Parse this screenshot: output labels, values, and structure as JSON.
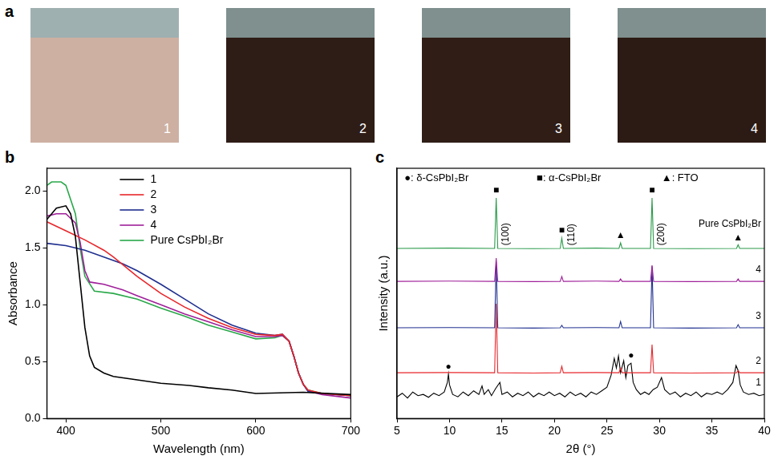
{
  "photos": {
    "letter": "a",
    "labels": [
      "1",
      "2",
      "3",
      "4"
    ],
    "colors": [
      "#cdb0a2",
      "#2e1c16",
      "#2f1d16",
      "#2c1a14"
    ]
  },
  "chart_data": [
    {
      "type": "line",
      "title": "b",
      "x_label": "Wavelength (nm)",
      "y_label": "Absorbance",
      "xlim": [
        380,
        700
      ],
      "xticks": [
        400,
        500,
        600,
        700
      ],
      "ylim": [
        0,
        2.2
      ],
      "yticks": [
        {
          "value": 0,
          "label": "0.0"
        },
        {
          "value": 0.5,
          "label": "0.5"
        },
        {
          "value": 1,
          "label": "1.0"
        },
        {
          "value": 1.5,
          "label": "1.5"
        },
        {
          "value": 2,
          "label": "2.0"
        }
      ],
      "grid": false,
      "legend": "top right",
      "series": [
        {
          "name": "1",
          "color": "#000000",
          "x": [
            380,
            390,
            400,
            405,
            410,
            415,
            420,
            425,
            430,
            440,
            450,
            475,
            500,
            530,
            550,
            575,
            600,
            650,
            700
          ],
          "values": [
            1.75,
            1.85,
            1.87,
            1.8,
            1.6,
            1.2,
            0.8,
            0.55,
            0.45,
            0.4,
            0.37,
            0.34,
            0.31,
            0.29,
            0.27,
            0.25,
            0.22,
            0.23,
            0.21
          ]
        },
        {
          "name": "2",
          "color": "#e8262b",
          "x": [
            380,
            400,
            420,
            440,
            450,
            475,
            500,
            525,
            550,
            575,
            600,
            620,
            628,
            635,
            640,
            645,
            650,
            655,
            670,
            700
          ],
          "values": [
            1.73,
            1.65,
            1.57,
            1.48,
            1.42,
            1.25,
            1.1,
            0.98,
            0.88,
            0.8,
            0.74,
            0.73,
            0.74,
            0.68,
            0.55,
            0.4,
            0.3,
            0.25,
            0.22,
            0.2
          ]
        },
        {
          "name": "3",
          "color": "#1f2f8f",
          "x": [
            380,
            400,
            420,
            440,
            460,
            475,
            500,
            525,
            550,
            575,
            600,
            620,
            628,
            635,
            640,
            645,
            650,
            655,
            670,
            700
          ],
          "values": [
            1.54,
            1.52,
            1.48,
            1.42,
            1.36,
            1.3,
            1.18,
            1.05,
            0.92,
            0.82,
            0.75,
            0.73,
            0.74,
            0.68,
            0.55,
            0.4,
            0.3,
            0.24,
            0.22,
            0.2
          ]
        },
        {
          "name": "4",
          "color": "#a0209a",
          "x": [
            380,
            390,
            400,
            410,
            415,
            420,
            425,
            440,
            460,
            475,
            500,
            525,
            550,
            575,
            600,
            620,
            628,
            635,
            640,
            645,
            650,
            655,
            670,
            700
          ],
          "values": [
            1.78,
            1.8,
            1.8,
            1.72,
            1.55,
            1.3,
            1.2,
            1.18,
            1.13,
            1.08,
            1.0,
            0.92,
            0.85,
            0.78,
            0.72,
            0.72,
            0.73,
            0.68,
            0.55,
            0.4,
            0.3,
            0.24,
            0.21,
            0.18
          ]
        },
        {
          "name": "Pure CsPbI₂Br",
          "color": "#2aa84a",
          "x": [
            380,
            385,
            395,
            400,
            410,
            415,
            420,
            430,
            450,
            475,
            500,
            525,
            550,
            575,
            600,
            620,
            628,
            635,
            640,
            645,
            650,
            655,
            670,
            700
          ],
          "values": [
            2.05,
            2.08,
            2.08,
            2.05,
            1.8,
            1.5,
            1.25,
            1.12,
            1.1,
            1.05,
            0.97,
            0.9,
            0.82,
            0.76,
            0.7,
            0.71,
            0.73,
            0.68,
            0.55,
            0.4,
            0.3,
            0.25,
            0.22,
            0.2
          ]
        }
      ]
    },
    {
      "type": "line",
      "title": "c",
      "x_label": "2θ (°)",
      "y_label": "Intensity (a.u.)",
      "xlim": [
        5,
        40
      ],
      "xticks": [
        5,
        10,
        15,
        20,
        25,
        30,
        35,
        40
      ],
      "ylim": [
        0,
        10.4
      ],
      "grid": false,
      "tick_labels": "x",
      "annotations": {
        "symbol_key": [
          "●: δ-CsPbI₂Br",
          "■: α-CsPbI₂Br",
          "▲: FTO"
        ],
        "peaks": [
          {
            "x": 14.45,
            "symbol": "■",
            "label": "(100)",
            "series": "Pure CsPbI₂Br"
          },
          {
            "x": 20.7,
            "symbol": "■",
            "label": "(110)",
            "series": "Pure CsPbI₂Br"
          },
          {
            "x": 26.3,
            "symbol": "▲",
            "series": "Pure CsPbI₂Br"
          },
          {
            "x": 29.3,
            "symbol": "■",
            "label": "(200)",
            "series": "Pure CsPbI₂Br"
          },
          {
            "x": 37.5,
            "symbol": "▲",
            "series": "Pure CsPbI₂Br"
          },
          {
            "x": 9.9,
            "symbol": "●",
            "series": "1"
          },
          {
            "x": 27.3,
            "symbol": "●",
            "series": "1"
          }
        ]
      },
      "series": [
        {
          "name": "Pure CsPbI₂Br",
          "color": "#2a9a4a",
          "x": [
            5,
            10,
            14.3,
            14.45,
            14.6,
            18,
            20.55,
            20.7,
            20.85,
            24,
            26.15,
            26.3,
            26.45,
            29.15,
            29.3,
            29.45,
            33,
            37.35,
            37.5,
            37.65,
            40
          ],
          "values": [
            7.07,
            7.08,
            7.07,
            9.17,
            7.07,
            7.06,
            7.07,
            7.5,
            7.07,
            7.08,
            7.07,
            7.3,
            7.07,
            7.07,
            9.17,
            7.07,
            7.06,
            7.07,
            7.22,
            7.07,
            7.07
          ]
        },
        {
          "name": "4",
          "color": "#a0209a",
          "x": [
            5,
            10,
            14.3,
            14.45,
            14.6,
            18,
            20.55,
            20.7,
            20.85,
            24,
            26.15,
            26.3,
            26.45,
            29.15,
            29.3,
            29.45,
            33,
            37.35,
            37.5,
            37.65,
            40
          ],
          "values": [
            5.7,
            5.71,
            5.7,
            6.67,
            5.7,
            5.69,
            5.7,
            5.9,
            5.7,
            5.71,
            5.7,
            5.8,
            5.7,
            5.7,
            6.37,
            5.7,
            5.69,
            5.7,
            5.8,
            5.7,
            5.7
          ]
        },
        {
          "name": "3",
          "color": "#1f2f8f",
          "x": [
            5,
            10,
            14.3,
            14.45,
            14.6,
            18,
            20.55,
            20.7,
            20.85,
            24,
            26.15,
            26.3,
            26.45,
            29.15,
            29.3,
            29.45,
            33,
            37.35,
            37.5,
            37.65,
            40
          ],
          "values": [
            3.77,
            3.78,
            3.77,
            6.53,
            3.77,
            3.76,
            3.77,
            3.87,
            3.77,
            3.78,
            3.77,
            4.03,
            3.77,
            3.77,
            6.33,
            3.77,
            3.76,
            3.77,
            3.9,
            3.77,
            3.77
          ]
        },
        {
          "name": "2",
          "color": "#e8262b",
          "x": [
            5,
            10,
            14.3,
            14.45,
            14.6,
            18,
            20.55,
            20.7,
            20.85,
            24,
            26.15,
            26.3,
            26.45,
            29.15,
            29.3,
            29.45,
            33,
            37.35,
            37.5,
            37.65,
            40
          ],
          "values": [
            1.9,
            1.91,
            1.9,
            4.77,
            1.9,
            1.89,
            1.9,
            2.17,
            1.9,
            1.91,
            1.9,
            2.1,
            1.9,
            1.9,
            3.07,
            1.9,
            1.89,
            1.9,
            2.0,
            1.9,
            1.9
          ]
        },
        {
          "name": "1",
          "color": "#000000",
          "x": [
            5,
            5.5,
            6,
            6.5,
            7,
            7.5,
            8,
            8.5,
            9,
            9.5,
            9.8,
            9.9,
            10.0,
            10.3,
            10.8,
            11.3,
            11.8,
            12.3,
            12.8,
            13.1,
            13.3,
            13.7,
            14.0,
            14.4,
            14.8,
            15.0,
            15.5,
            16,
            16.5,
            17,
            17.5,
            18,
            18.5,
            19,
            19.5,
            20,
            20.5,
            21,
            21.5,
            22,
            22.5,
            23,
            23.5,
            24,
            24.5,
            25,
            25.4,
            25.7,
            25.9,
            26.1,
            26.3,
            26.6,
            26.8,
            27.0,
            27.3,
            27.5,
            27.8,
            28.2,
            28.6,
            29,
            29.4,
            29.8,
            30.2,
            30.5,
            31,
            31.5,
            32,
            32.5,
            33,
            33.5,
            34,
            34.5,
            35,
            35.5,
            36,
            36.5,
            37,
            37.3,
            37.5,
            37.7,
            38,
            38.5,
            39,
            39.5,
            40
          ],
          "values": [
            0.9,
            1.05,
            0.85,
            1.1,
            0.95,
            1.0,
            0.88,
            1.05,
            0.95,
            1.1,
            1.5,
            1.85,
            1.4,
            1.0,
            0.9,
            1.1,
            0.95,
            1.15,
            1.0,
            1.35,
            1.0,
            1.2,
            0.95,
            1.25,
            1.5,
            1.0,
            1.1,
            0.9,
            1.05,
            0.95,
            1.1,
            0.9,
            1.05,
            0.95,
            1.1,
            0.95,
            1.05,
            0.9,
            1.1,
            0.95,
            1.05,
            0.9,
            1.1,
            1.0,
            1.15,
            1.3,
            1.8,
            2.5,
            2.1,
            2.6,
            1.9,
            2.4,
            1.7,
            2.2,
            2.3,
            1.5,
            1.2,
            1.0,
            1.1,
            1.0,
            1.2,
            1.3,
            1.7,
            1.2,
            1.0,
            1.1,
            0.9,
            1.05,
            0.95,
            1.1,
            0.9,
            1.05,
            1.0,
            1.1,
            1.0,
            1.2,
            1.5,
            2.2,
            2.0,
            1.4,
            1.1,
            1.0,
            1.05,
            0.95,
            1.0
          ]
        }
      ]
    }
  ]
}
